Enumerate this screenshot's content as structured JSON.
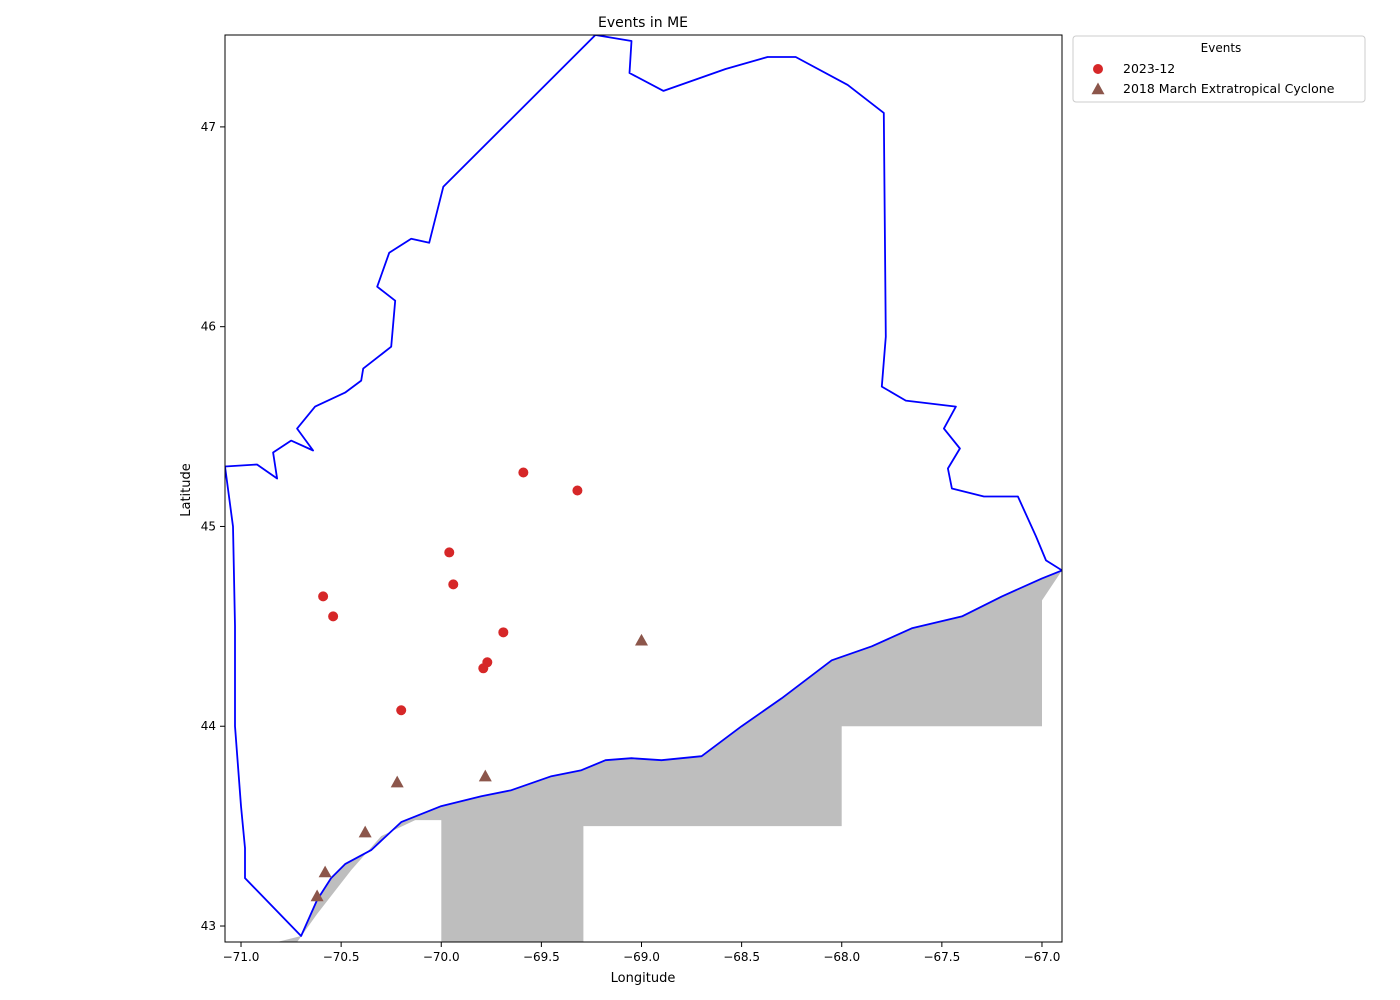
{
  "chart_data": {
    "type": "scatter",
    "title": "Events in ME",
    "xlabel": "Longitude",
    "ylabel": "Latitude",
    "xlim": [
      -71.08,
      -66.9
    ],
    "ylim": [
      42.92,
      47.46
    ],
    "xticks": [
      -71.0,
      -70.5,
      -70.0,
      -69.5,
      -69.0,
      -68.5,
      -68.0,
      -67.5,
      -67.0
    ],
    "xtick_labels": [
      "−71.0",
      "−70.5",
      "−70.0",
      "−69.5",
      "−69.0",
      "−68.5",
      "−68.0",
      "−67.5",
      "−67.0"
    ],
    "yticks": [
      43,
      44,
      45,
      46,
      47
    ],
    "ytick_labels": [
      "43",
      "44",
      "45",
      "46",
      "47"
    ],
    "grid": false,
    "legend": {
      "title": "Events",
      "placement": "outside-top-right"
    },
    "series": [
      {
        "name": "2023-12",
        "marker": "circle",
        "color": "#d62728",
        "points": [
          {
            "x": -69.59,
            "y": 45.27
          },
          {
            "x": -69.32,
            "y": 45.18
          },
          {
            "x": -69.96,
            "y": 44.87
          },
          {
            "x": -69.94,
            "y": 44.71
          },
          {
            "x": -70.59,
            "y": 44.65
          },
          {
            "x": -70.54,
            "y": 44.55
          },
          {
            "x": -69.69,
            "y": 44.47
          },
          {
            "x": -69.77,
            "y": 44.32
          },
          {
            "x": -69.79,
            "y": 44.29
          },
          {
            "x": -70.2,
            "y": 44.08
          }
        ]
      },
      {
        "name": "2018 March Extratropical Cyclone",
        "marker": "triangle",
        "color": "#8c564b",
        "points": [
          {
            "x": -69.0,
            "y": 44.43
          },
          {
            "x": -69.78,
            "y": 43.75
          },
          {
            "x": -70.22,
            "y": 43.72
          },
          {
            "x": -70.38,
            "y": 43.47
          },
          {
            "x": -70.58,
            "y": 43.27
          },
          {
            "x": -70.62,
            "y": 43.15
          }
        ]
      }
    ],
    "boundary_color": "#0000ff",
    "water_color": "#bebebe",
    "boundary": [
      [
        -71.08,
        45.3
      ],
      [
        -70.92,
        45.31
      ],
      [
        -70.82,
        45.24
      ],
      [
        -70.84,
        45.37
      ],
      [
        -70.75,
        45.43
      ],
      [
        -70.64,
        45.38
      ],
      [
        -70.72,
        45.49
      ],
      [
        -70.63,
        45.6
      ],
      [
        -70.48,
        45.67
      ],
      [
        -70.4,
        45.73
      ],
      [
        -70.39,
        45.79
      ],
      [
        -70.25,
        45.9
      ],
      [
        -70.23,
        46.13
      ],
      [
        -70.32,
        46.2
      ],
      [
        -70.26,
        46.37
      ],
      [
        -70.15,
        46.44
      ],
      [
        -70.06,
        46.42
      ],
      [
        -69.99,
        46.7
      ],
      [
        -69.23,
        47.46
      ],
      [
        -69.05,
        47.43
      ],
      [
        -69.06,
        47.27
      ],
      [
        -68.89,
        47.18
      ],
      [
        -68.58,
        47.29
      ],
      [
        -68.37,
        47.35
      ],
      [
        -68.23,
        47.35
      ],
      [
        -67.97,
        47.21
      ],
      [
        -67.79,
        47.07
      ],
      [
        -67.78,
        45.95
      ],
      [
        -67.8,
        45.7
      ],
      [
        -67.68,
        45.63
      ],
      [
        -67.43,
        45.6
      ],
      [
        -67.49,
        45.49
      ],
      [
        -67.41,
        45.39
      ],
      [
        -67.47,
        45.29
      ],
      [
        -67.45,
        45.19
      ],
      [
        -67.29,
        45.15
      ],
      [
        -67.12,
        45.15
      ],
      [
        -67.03,
        44.95
      ],
      [
        -66.98,
        44.83
      ],
      [
        -66.9,
        44.78
      ],
      [
        -67.0,
        44.74
      ],
      [
        -67.2,
        44.65
      ],
      [
        -67.4,
        44.55
      ],
      [
        -67.65,
        44.49
      ],
      [
        -67.85,
        44.4
      ],
      [
        -68.05,
        44.33
      ],
      [
        -68.3,
        44.14
      ],
      [
        -68.5,
        44.0
      ],
      [
        -68.7,
        43.85
      ],
      [
        -68.9,
        43.83
      ],
      [
        -69.05,
        43.84
      ],
      [
        -69.18,
        43.83
      ],
      [
        -69.3,
        43.78
      ],
      [
        -69.45,
        43.75
      ],
      [
        -69.65,
        43.68
      ],
      [
        -69.8,
        43.65
      ],
      [
        -70.0,
        43.6
      ],
      [
        -70.2,
        43.52
      ],
      [
        -70.35,
        43.38
      ],
      [
        -70.48,
        43.31
      ],
      [
        -70.55,
        43.24
      ],
      [
        -70.62,
        43.13
      ],
      [
        -70.7,
        42.95
      ],
      [
        -70.98,
        43.24
      ],
      [
        -70.98,
        43.39
      ],
      [
        -71.0,
        43.6
      ],
      [
        -71.03,
        44.0
      ],
      [
        -71.03,
        44.5
      ],
      [
        -71.04,
        45.0
      ],
      [
        -71.08,
        45.3
      ]
    ],
    "ocean": [
      [
        -70.82,
        42.92
      ],
      [
        -70.72,
        42.92
      ],
      [
        -70.62,
        43.06
      ],
      [
        -70.45,
        43.28
      ],
      [
        -70.3,
        43.45
      ],
      [
        -70.13,
        43.53
      ],
      [
        -70.0,
        43.53
      ],
      [
        -70.0,
        42.92
      ],
      [
        -69.29,
        42.92
      ],
      [
        -69.29,
        43.5
      ],
      [
        -68.0,
        43.5
      ],
      [
        -68.0,
        44.0
      ],
      [
        -67.0,
        44.0
      ],
      [
        -67.0,
        44.63
      ],
      [
        -66.9,
        44.78
      ],
      [
        -67.0,
        44.74
      ],
      [
        -67.2,
        44.65
      ],
      [
        -67.4,
        44.55
      ],
      [
        -67.65,
        44.49
      ],
      [
        -67.85,
        44.4
      ],
      [
        -68.05,
        44.33
      ],
      [
        -68.3,
        44.14
      ],
      [
        -68.5,
        44.0
      ],
      [
        -68.7,
        43.85
      ],
      [
        -68.9,
        43.83
      ],
      [
        -69.05,
        43.84
      ],
      [
        -69.18,
        43.83
      ],
      [
        -69.3,
        43.78
      ],
      [
        -69.45,
        43.75
      ],
      [
        -69.65,
        43.68
      ],
      [
        -69.8,
        43.65
      ],
      [
        -70.0,
        43.6
      ],
      [
        -70.2,
        43.52
      ],
      [
        -70.35,
        43.38
      ],
      [
        -70.48,
        43.31
      ],
      [
        -70.55,
        43.24
      ],
      [
        -70.62,
        43.13
      ],
      [
        -70.7,
        42.95
      ]
    ]
  }
}
